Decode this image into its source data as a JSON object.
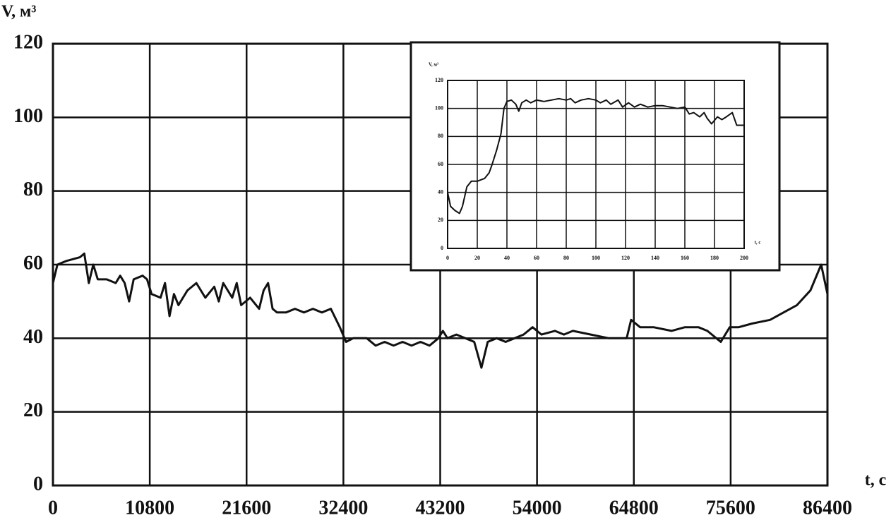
{
  "chart_data": [
    {
      "type": "line",
      "x_label": "t, c",
      "y_label": "V, м³",
      "xlim": [
        0,
        86400
      ],
      "xticks": [
        0,
        10800,
        21600,
        32400,
        43200,
        54000,
        64800,
        75600,
        86400
      ],
      "ylim": [
        0,
        120
      ],
      "yticks": [
        0,
        20,
        40,
        60,
        80,
        100,
        120
      ],
      "grid": true,
      "series": [
        {
          "color": "#111111",
          "x": [
            0,
            500,
            1500,
            3000,
            3500,
            4000,
            4500,
            5000,
            6000,
            7000,
            7500,
            8000,
            8500,
            9000,
            10000,
            10500,
            11000,
            12000,
            12500,
            13000,
            13500,
            14000,
            15000,
            16000,
            17000,
            18000,
            18500,
            19000,
            20000,
            20500,
            21000,
            22000,
            23000,
            23500,
            24000,
            24500,
            25000,
            26000,
            27000,
            28000,
            29000,
            30000,
            31000,
            32000,
            32700,
            33500,
            35000,
            36000,
            37000,
            38000,
            39000,
            40000,
            41000,
            42000,
            43000,
            43500,
            44000,
            45000,
            46000,
            47000,
            47800,
            48500,
            49500,
            50500,
            51500,
            52500,
            53500,
            54500,
            56000,
            57000,
            58000,
            60000,
            62000,
            63500,
            64000,
            64500,
            65500,
            67000,
            69000,
            70500,
            72000,
            73000,
            74500,
            75500,
            76500,
            78000,
            80000,
            81500,
            83000,
            84500,
            85700,
            86400
          ],
          "values": [
            55,
            60,
            61,
            62,
            63,
            55,
            60,
            56,
            56,
            55,
            57,
            55,
            50,
            56,
            57,
            56,
            52,
            51,
            55,
            46,
            52,
            49,
            53,
            55,
            51,
            54,
            50,
            55,
            51,
            55,
            49,
            51,
            48,
            53,
            55,
            48,
            47,
            47,
            48,
            47,
            48,
            47,
            48,
            43,
            39,
            40,
            40,
            38,
            39,
            38,
            39,
            38,
            39,
            38,
            40,
            42,
            40,
            41,
            40,
            39,
            32,
            39,
            40,
            39,
            40,
            41,
            43,
            41,
            42,
            41,
            42,
            41,
            40,
            40,
            40,
            45,
            43,
            43,
            42,
            43,
            43,
            42,
            39,
            43,
            43,
            44,
            45,
            47,
            49,
            53,
            60,
            52
          ]
        }
      ]
    },
    {
      "type": "line",
      "x_label": "t, c",
      "y_label": "V, м³",
      "xlim": [
        0,
        200
      ],
      "xticks": [
        0,
        20,
        40,
        60,
        80,
        100,
        120,
        140,
        160,
        180,
        200
      ],
      "ylim": [
        0,
        120
      ],
      "yticks": [
        0,
        20,
        40,
        60,
        80,
        100,
        120
      ],
      "grid": true,
      "series": [
        {
          "color": "#111111",
          "x": [
            0,
            2,
            5,
            8,
            10,
            13,
            16,
            20,
            25,
            28,
            30,
            33,
            36,
            38,
            40,
            43,
            46,
            48,
            50,
            53,
            56,
            60,
            65,
            70,
            75,
            80,
            83,
            86,
            90,
            95,
            100,
            103,
            107,
            110,
            115,
            118,
            122,
            126,
            130,
            135,
            140,
            145,
            150,
            155,
            160,
            163,
            166,
            170,
            173,
            175,
            178,
            182,
            185,
            188,
            192,
            195,
            200
          ],
          "values": [
            40,
            30,
            27,
            25,
            30,
            44,
            48,
            48,
            50,
            54,
            60,
            70,
            82,
            100,
            105,
            106,
            103,
            98,
            104,
            106,
            104,
            106,
            105,
            106,
            107,
            106,
            107,
            104,
            106,
            107,
            106,
            104,
            106,
            103,
            106,
            101,
            104,
            101,
            103,
            101,
            102,
            102,
            101,
            100,
            101,
            96,
            97,
            94,
            97,
            93,
            89,
            94,
            92,
            94,
            97,
            88,
            88
          ]
        }
      ]
    }
  ]
}
